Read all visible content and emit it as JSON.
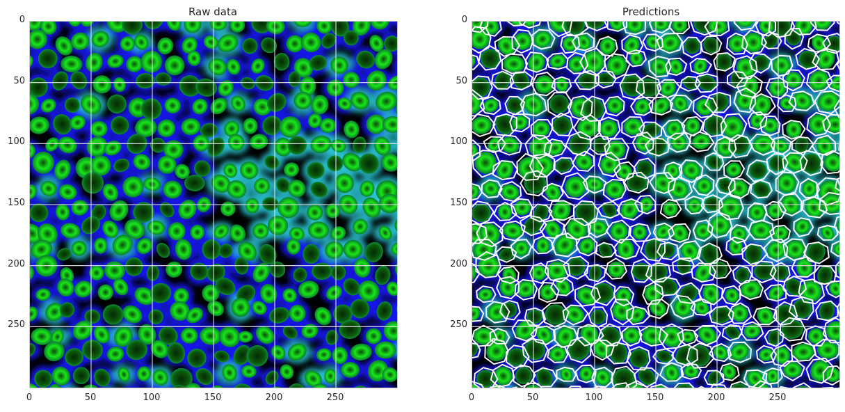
{
  "panels": [
    {
      "title": "Raw data",
      "xticks": [
        "0",
        "50",
        "100",
        "150",
        "200",
        "250"
      ],
      "yticks": [
        "0",
        "50",
        "100",
        "150",
        "200",
        "250"
      ],
      "xlim": [
        0,
        300
      ],
      "ylim": [
        300,
        0
      ],
      "grid": true,
      "overlay_boundaries": false
    },
    {
      "title": "Predictions",
      "xticks": [
        "0",
        "50",
        "100",
        "150",
        "200",
        "250"
      ],
      "yticks": [
        "0",
        "50",
        "100",
        "150",
        "200",
        "250"
      ],
      "xlim": [
        0,
        300
      ],
      "ylim": [
        300,
        0
      ],
      "grid": true,
      "overlay_boundaries": true
    }
  ],
  "colors": {
    "nucleus": "#19e619",
    "nucleus_dark": "#0b5a0b",
    "membrane": "#1414ff",
    "membrane_bright": "#2ed7e6",
    "background": "#000000",
    "grid": "#e6e6e6",
    "boundary": "#ffffff"
  }
}
